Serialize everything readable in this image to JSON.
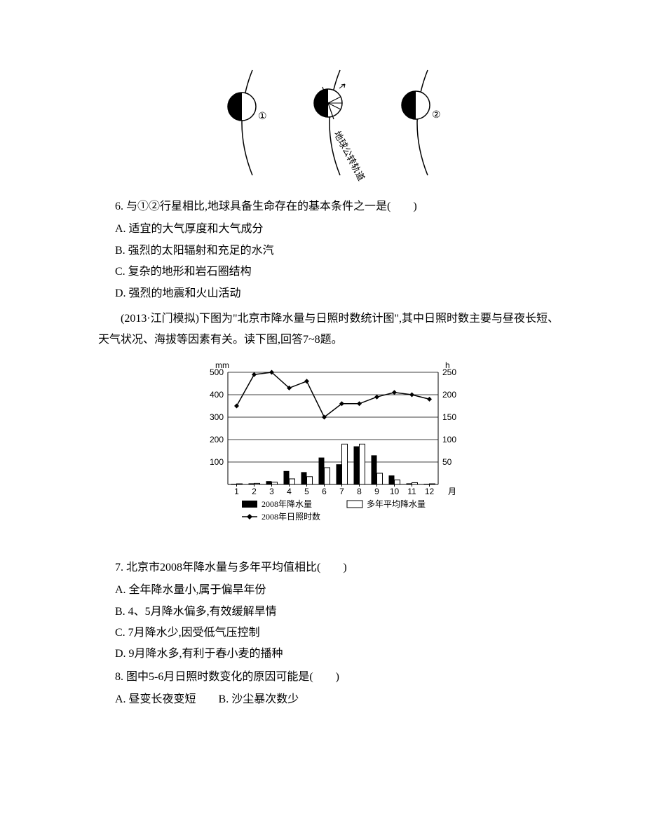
{
  "orbit_diagram": {
    "planets": [
      {
        "label": "①",
        "shaded_left": true
      },
      {
        "label": "",
        "shaded_left": true,
        "is_earth": true
      },
      {
        "label": "②",
        "shaded_left": true
      }
    ],
    "orbit_label": "地球公转轨道",
    "stroke": "#000000",
    "fill_dark": "#000000",
    "fill_light": "#ffffff"
  },
  "q6": {
    "stem": "6. 与①②行星相比,地球具备生命存在的基本条件之一是(　　)",
    "options": {
      "A": "A. 适宜的大气厚度和大气成分",
      "B": "B. 强烈的太阳辐射和充足的水汽",
      "C": "C. 复杂的地形和岩石圈结构",
      "D": "D. 强烈的地震和火山活动"
    }
  },
  "passage78": "(2013·江门模拟)下图为\"北京市降水量与日照时数统计图\",其中日照时数主要与昼夜长短、天气状况、海拔等因素有关。读下图,回答7~8题。",
  "chart": {
    "type": "combo-bar-line",
    "y_left_label": "mm",
    "y_right_label": "h",
    "x_label": "月",
    "months": [
      1,
      2,
      3,
      4,
      5,
      6,
      7,
      8,
      9,
      10,
      11,
      12
    ],
    "y_left_ticks": [
      100,
      200,
      300,
      400,
      500
    ],
    "y_right_ticks": [
      50,
      100,
      150,
      200,
      250
    ],
    "y_left_max": 500,
    "y_right_max": 250,
    "series": {
      "precip_2008": {
        "label": "2008年降水量",
        "color": "#000000",
        "values": [
          3,
          5,
          15,
          60,
          55,
          120,
          90,
          170,
          130,
          40,
          5,
          3
        ]
      },
      "precip_avg": {
        "label": "多年平均降水量",
        "color": "#ffffff",
        "stroke": "#000000",
        "values": [
          3,
          5,
          10,
          25,
          35,
          75,
          180,
          180,
          50,
          20,
          8,
          3
        ]
      },
      "sun_2008": {
        "label": "2008年日照时数",
        "color": "#000000",
        "marker": "diamond",
        "values": [
          175,
          245,
          250,
          215,
          230,
          150,
          180,
          180,
          195,
          205,
          200,
          190
        ]
      }
    },
    "grid_color": "#000000",
    "background": "#ffffff",
    "axis_color": "#000000",
    "font_size": 12
  },
  "q7": {
    "stem": "7. 北京市2008年降水量与多年平均值相比(　　)",
    "options": {
      "A": "A. 全年降水量小,属于偏旱年份",
      "B": "B. 4、5月降水偏多,有效缓解旱情",
      "C": "C. 7月降水少,因受低气压控制",
      "D": "D. 9月降水多,有利于春小麦的播种"
    }
  },
  "q8": {
    "stem": "8. 图中5-6月日照时数变化的原因可能是(　　)",
    "options_inline": "A. 昼变长夜变短　　B. 沙尘暴次数少"
  }
}
